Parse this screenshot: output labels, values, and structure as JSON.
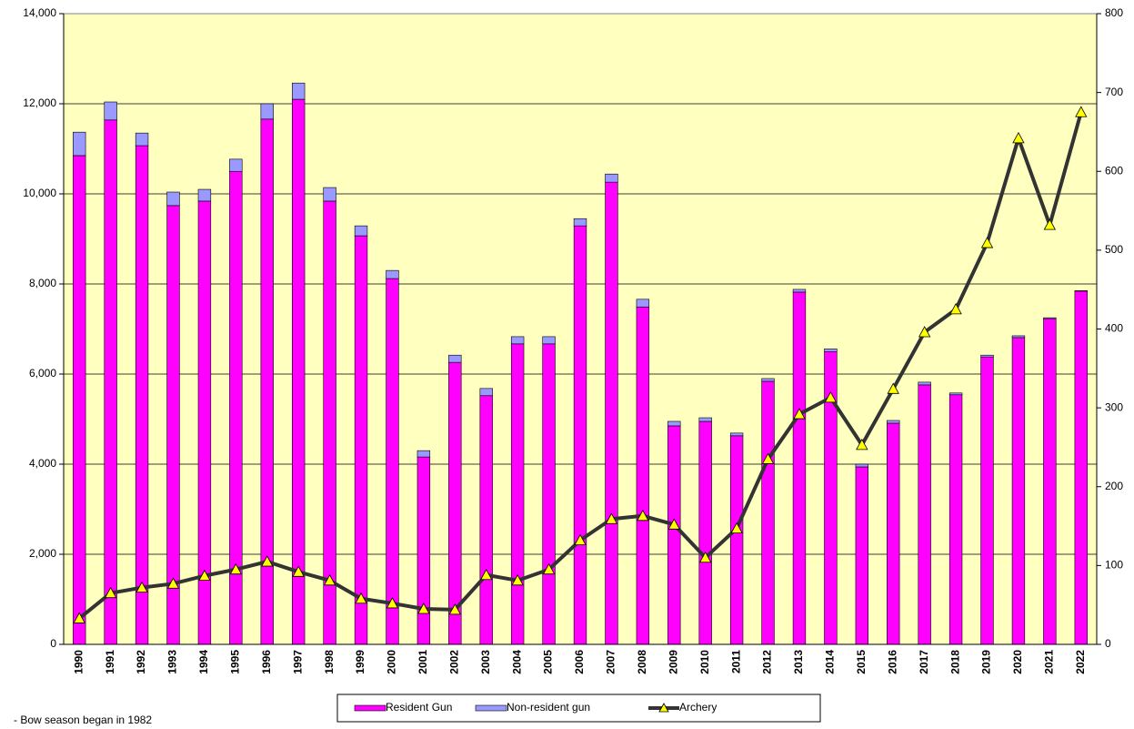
{
  "chart_data": {
    "type": "bar",
    "footnote": "- Bow season began in 1982",
    "categories": [
      "1990",
      "1991",
      "1992",
      "1993",
      "1994",
      "1995",
      "1996",
      "1997",
      "1998",
      "1999",
      "2000",
      "2001",
      "2002",
      "2003",
      "2004",
      "2005",
      "2006",
      "2007",
      "2008",
      "2009",
      "2010",
      "2011",
      "2012",
      "2013",
      "2014",
      "2015",
      "2016",
      "2017",
      "2018",
      "2019",
      "2020",
      "2021",
      "2022"
    ],
    "series": [
      {
        "name": "Resident Gun",
        "color": "#ff00ff",
        "values": [
          10850,
          11640,
          11070,
          9740,
          9840,
          10500,
          11660,
          12100,
          9840,
          9070,
          8120,
          4160,
          6260,
          5520,
          6670,
          6670,
          9290,
          10260,
          7490,
          4850,
          4950,
          4630,
          5840,
          7820,
          6500,
          3940,
          4910,
          5760,
          5540,
          6380,
          6810,
          7230,
          7840
        ]
      },
      {
        "name": "Non-resident gun",
        "color": "#9999ff",
        "values": [
          520,
          400,
          280,
          300,
          260,
          270,
          340,
          360,
          300,
          220,
          180,
          140,
          160,
          160,
          160,
          160,
          160,
          180,
          170,
          100,
          80,
          60,
          60,
          60,
          60,
          60,
          60,
          60,
          40,
          40,
          40,
          20,
          10
        ]
      },
      {
        "name": "Archery",
        "color": "#333333",
        "marker_color": "#ffff00",
        "axis": "y2",
        "values": [
          33,
          65,
          72,
          77,
          87,
          95,
          105,
          92,
          81,
          58,
          52,
          45,
          44,
          88,
          81,
          95,
          132,
          159,
          163,
          152,
          110,
          147,
          235,
          292,
          313,
          253,
          324,
          396,
          425,
          509,
          642,
          532,
          675
        ]
      }
    ],
    "ylim": [
      0,
      14000
    ],
    "yticks": [
      0,
      {
        "value": 2000,
        "label": "2,000"
      },
      {
        "value": 4000,
        "label": "4,000"
      },
      {
        "value": 6000,
        "label": "6,000"
      },
      {
        "value": 8000,
        "label": "8,000"
      },
      {
        "value": 10000,
        "label": "10,000"
      },
      {
        "value": 12000,
        "label": "12,000"
      },
      {
        "value": 14000,
        "label": "14,000"
      }
    ],
    "y2lim": [
      0,
      800
    ],
    "y2ticks": [
      0,
      100,
      200,
      300,
      400,
      500,
      600,
      700,
      800
    ],
    "grid": true,
    "legend": "bottom"
  }
}
